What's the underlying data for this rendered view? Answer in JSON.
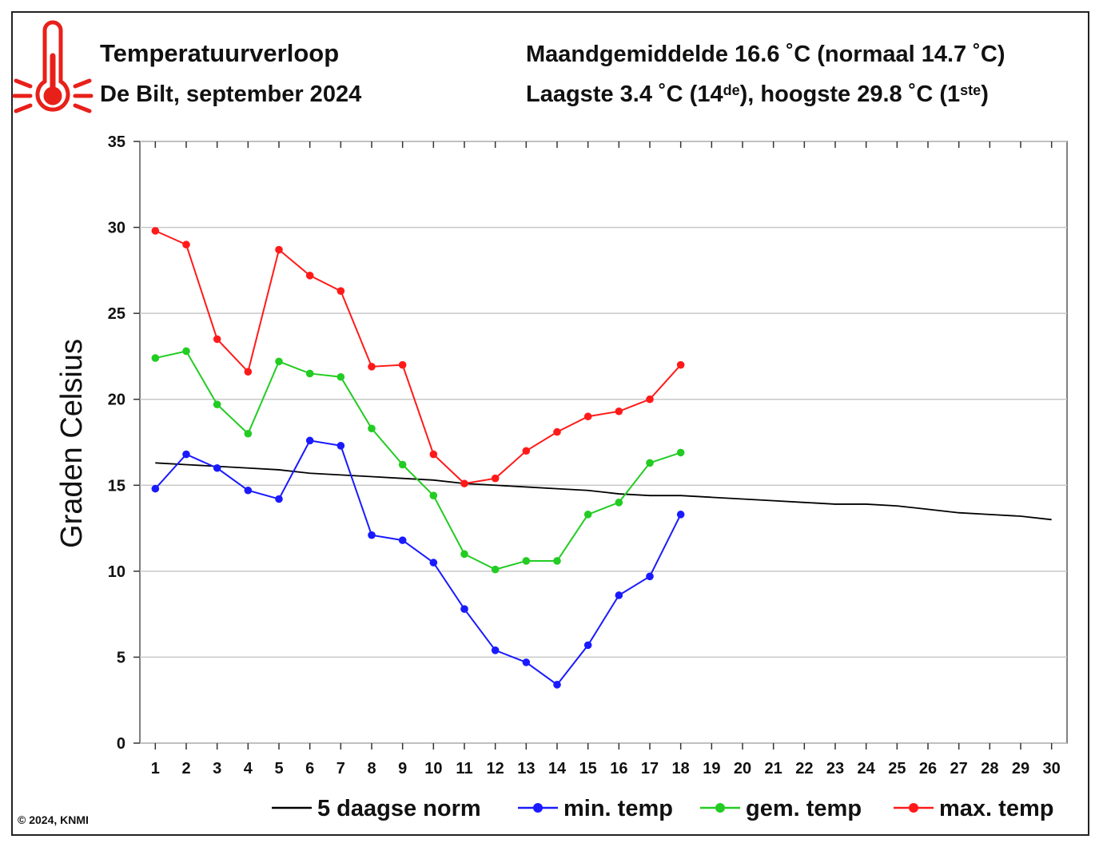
{
  "chart_data": {
    "type": "line",
    "title": "Temperatuurverloop",
    "subtitle": "De Bilt, september 2024",
    "summary": "Maandgemiddelde 16.6 ˚C (normaal 14.7 ˚C)",
    "extremes": [
      "Laagste 3.4 ˚C (14",
      "de",
      "), hoogste 29.8 ˚C (1",
      "ste",
      ")"
    ],
    "y_label": "Graden Celsius",
    "credit": "© 2024, KNMI",
    "categories": [
      "1",
      "2",
      "3",
      "4",
      "5",
      "6",
      "7",
      "8",
      "9",
      "10",
      "11",
      "12",
      "13",
      "14",
      "15",
      "16",
      "17",
      "18",
      "19",
      "20",
      "21",
      "22",
      "23",
      "24",
      "25",
      "26",
      "27",
      "28",
      "29",
      "30"
    ],
    "ylim": [
      0,
      35
    ],
    "yticks": [
      0,
      5,
      10,
      15,
      20,
      25,
      30,
      35
    ],
    "grid": true,
    "series": [
      {
        "name": "5 daagse norm",
        "color": "#000000",
        "markers": false,
        "values": [
          16.3,
          16.2,
          16.1,
          16.0,
          15.9,
          15.7,
          15.6,
          15.5,
          15.4,
          15.3,
          15.1,
          15.0,
          14.9,
          14.8,
          14.7,
          14.5,
          14.4,
          14.4,
          14.3,
          14.2,
          14.1,
          14.0,
          13.9,
          13.9,
          13.8,
          13.6,
          13.4,
          13.3,
          13.2,
          13.0
        ]
      },
      {
        "name": "min. temp",
        "color": "#1a1aff",
        "markers": true,
        "values": [
          14.8,
          16.8,
          16.0,
          14.7,
          14.2,
          17.6,
          17.3,
          12.1,
          11.8,
          10.5,
          7.8,
          5.4,
          4.7,
          3.4,
          5.7,
          8.6,
          9.7,
          13.3,
          null,
          null,
          null,
          null,
          null,
          null,
          null,
          null,
          null,
          null,
          null,
          null
        ]
      },
      {
        "name": "gem. temp",
        "color": "#22cc22",
        "markers": true,
        "values": [
          22.4,
          22.8,
          19.7,
          18.0,
          22.2,
          21.5,
          21.3,
          18.3,
          16.2,
          14.4,
          11.0,
          10.1,
          10.6,
          10.6,
          13.3,
          14.0,
          16.3,
          16.9,
          null,
          null,
          null,
          null,
          null,
          null,
          null,
          null,
          null,
          null,
          null,
          null
        ]
      },
      {
        "name": "max. temp",
        "color": "#ff1a1a",
        "markers": true,
        "values": [
          29.8,
          29.0,
          23.5,
          21.6,
          28.7,
          27.2,
          26.3,
          21.9,
          22.0,
          16.8,
          15.1,
          15.4,
          17.0,
          18.1,
          19.0,
          19.3,
          20.0,
          22.0,
          null,
          null,
          null,
          null,
          null,
          null,
          null,
          null,
          null,
          null,
          null,
          null
        ]
      }
    ]
  }
}
